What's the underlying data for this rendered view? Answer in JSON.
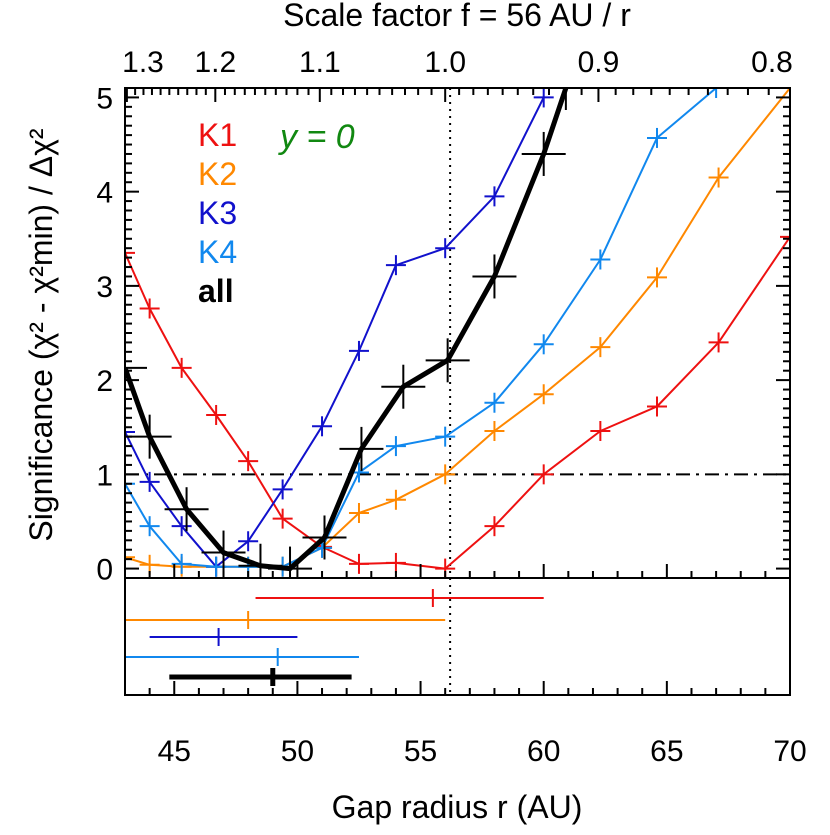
{
  "chart_data": {
    "type": "line",
    "xlabel": "Gap radius r (AU)",
    "ylabel": "Significance (χ² - χ²min) / Δχ²",
    "top_axis_label": "Scale factor f = 56 AU / r",
    "annotation": "y = 0",
    "xlim": [
      43,
      70
    ],
    "ylim": [
      -0.1,
      5.1
    ],
    "x_ticks": [
      "45",
      "50",
      "55",
      "60",
      "65",
      "70"
    ],
    "y_ticks": [
      "0",
      "1",
      "2",
      "3",
      "4",
      "5"
    ],
    "top_ticks": [
      {
        "label": "1.3",
        "f": 1.3
      },
      {
        "label": "1.2",
        "f": 1.2
      },
      {
        "label": "1.1",
        "f": 1.1
      },
      {
        "label": "1.0",
        "f": 1.0
      },
      {
        "label": "0.9",
        "f": 0.9
      },
      {
        "label": "0.8",
        "f": 0.8
      }
    ],
    "reference_lines": {
      "vertical_x": 56.2,
      "horizontal_y": 1
    },
    "series": [
      {
        "name": "K1",
        "color": "#ee1111",
        "width": 2,
        "marker_size": 10,
        "x": [
          43.0,
          44.0,
          45.3,
          46.7,
          48.0,
          49.4,
          51.0,
          52.5,
          54.0,
          56.0,
          58.0,
          60.0,
          62.3,
          64.6,
          67.1,
          70.0
        ],
        "y": [
          3.35,
          2.76,
          2.13,
          1.63,
          1.14,
          0.53,
          0.23,
          0.05,
          0.06,
          0.0,
          0.45,
          1.0,
          1.46,
          1.72,
          2.4,
          3.52
        ]
      },
      {
        "name": "K2",
        "color": "#ff8800",
        "width": 2,
        "marker_size": 10,
        "x": [
          43.0,
          44.0,
          45.3,
          46.7,
          48.0,
          49.4,
          51.0,
          52.5,
          54.0,
          56.0,
          58.0,
          60.0,
          62.3,
          64.6,
          67.1,
          70.0
        ],
        "y": [
          0.12,
          0.04,
          0.02,
          0.02,
          0.02,
          0.02,
          0.22,
          0.59,
          0.73,
          1.0,
          1.46,
          1.85,
          2.35,
          3.09,
          4.15,
          5.1
        ]
      },
      {
        "name": "K3",
        "color": "#1111cc",
        "width": 2,
        "marker_size": 10,
        "x": [
          43.0,
          44.0,
          45.3,
          46.7,
          48.0,
          49.4,
          51.0,
          52.5,
          54.0,
          56.0,
          58.0,
          60.0
        ],
        "y": [
          1.45,
          0.92,
          0.45,
          0.02,
          0.29,
          0.84,
          1.51,
          2.31,
          3.22,
          3.4,
          3.95,
          5.0
        ]
      },
      {
        "name": "K4",
        "color": "#1188ee",
        "width": 2,
        "marker_size": 10,
        "x": [
          43.0,
          44.0,
          45.3,
          46.7,
          48.0,
          49.4,
          51.0,
          52.5,
          54.0,
          56.0,
          58.0,
          60.0,
          62.3,
          64.6,
          67.0
        ],
        "y": [
          0.9,
          0.45,
          0.05,
          0.02,
          0.02,
          0.02,
          0.22,
          1.02,
          1.3,
          1.4,
          1.76,
          2.38,
          3.28,
          4.57,
          5.1
        ]
      },
      {
        "name": "all",
        "color": "#000000",
        "width": 5,
        "marker_size": 22,
        "x": [
          43.0,
          44.0,
          45.5,
          47.0,
          48.5,
          49.7,
          51.1,
          52.6,
          54.3,
          56.1,
          58.0,
          60.0,
          60.9
        ],
        "y": [
          2.13,
          1.4,
          0.63,
          0.17,
          0.03,
          0.0,
          0.33,
          1.27,
          1.93,
          2.21,
          3.1,
          4.4,
          5.1
        ]
      }
    ],
    "bottom_panel": {
      "ranges": [
        {
          "name": "K1",
          "color": "#ee1111",
          "min": 48.3,
          "max": 60.0,
          "best": 55.5,
          "width": 2
        },
        {
          "name": "K2",
          "color": "#ff8800",
          "min": 43.0,
          "max": 56.0,
          "best": 48.0,
          "width": 2
        },
        {
          "name": "K3",
          "color": "#1111cc",
          "min": 44.0,
          "max": 50.0,
          "best": 46.8,
          "width": 2
        },
        {
          "name": "K4",
          "color": "#1188ee",
          "min": 43.0,
          "max": 52.5,
          "best": 49.2,
          "width": 2
        },
        {
          "name": "all",
          "color": "#000000",
          "min": 44.8,
          "max": 52.2,
          "best": 49.0,
          "width": 5
        }
      ]
    }
  }
}
